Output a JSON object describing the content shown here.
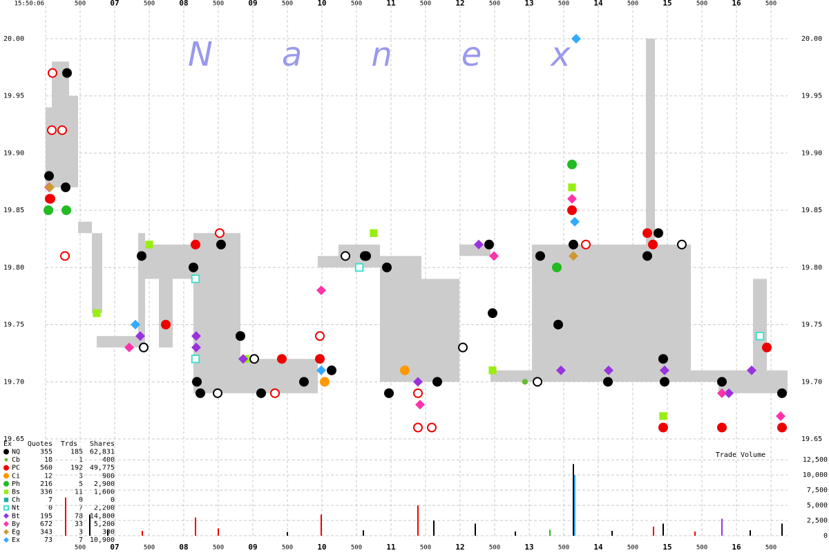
{
  "chart_data": [
    {
      "type": "scatter",
      "watermark": "Nanex",
      "xlim": [
        6,
        16.74
      ],
      "xticks": [
        {
          "value": 6,
          "label": "15:50:06"
        },
        {
          "value": 6.5,
          "label": "500"
        },
        {
          "value": 7,
          "label": "07"
        },
        {
          "value": 7.5,
          "label": "500"
        },
        {
          "value": 8,
          "label": "08"
        },
        {
          "value": 8.5,
          "label": "500"
        },
        {
          "value": 9,
          "label": "09"
        },
        {
          "value": 9.5,
          "label": "500"
        },
        10,
        {
          "value": 10.5,
          "label": "500"
        },
        11,
        {
          "value": 11.5,
          "label": "500"
        },
        12,
        {
          "value": 12.5,
          "label": "500"
        },
        13,
        {
          "value": 13.5,
          "label": "500"
        },
        14,
        {
          "value": 14.5,
          "label": "500"
        },
        15,
        {
          "value": 15.5,
          "label": "500"
        },
        16,
        {
          "value": 16.5,
          "label": "500"
        }
      ],
      "ylim": [
        19.647,
        20.029
      ],
      "yticks": [
        19.65,
        {
          "value": 19.7,
          "label": "19.70"
        },
        19.75,
        {
          "value": 19.8,
          "label": "19.80"
        },
        19.85,
        {
          "value": 19.9,
          "label": "19.90"
        },
        19.95,
        {
          "value": 20,
          "label": "20.00"
        }
      ],
      "grid": true,
      "band": {
        "color": "#cccccc",
        "t0": [
          6.0,
          6.09,
          6.34,
          6.47,
          6.67,
          6.74,
          7.34,
          7.44,
          7.64,
          7.84,
          8.14,
          8.82,
          9.94,
          10.24,
          10.84,
          11.44,
          11.99,
          12.44,
          13.04,
          13.49,
          14.69,
          14.82,
          15.34,
          15.74,
          16.24,
          16.44
        ],
        "t1": [
          6.09,
          6.34,
          6.47,
          6.67,
          6.82,
          7.34,
          7.44,
          7.64,
          7.84,
          8.14,
          8.82,
          9.94,
          10.24,
          10.84,
          11.44,
          11.99,
          12.44,
          13.04,
          13.49,
          14.69,
          14.82,
          15.34,
          15.74,
          16.24,
          16.44,
          16.74
        ],
        "bid": [
          19.87,
          19.87,
          19.87,
          19.83,
          19.76,
          19.73,
          19.73,
          19.79,
          19.73,
          19.79,
          19.69,
          19.69,
          19.8,
          19.8,
          19.7,
          19.7,
          19.81,
          19.7,
          19.7,
          19.7,
          19.7,
          19.7,
          19.7,
          19.69,
          19.69,
          19.69
        ],
        "ask": [
          19.94,
          19.98,
          19.95,
          19.84,
          19.83,
          19.74,
          19.83,
          19.82,
          19.82,
          19.82,
          19.83,
          19.72,
          19.81,
          19.82,
          19.81,
          19.79,
          19.82,
          19.71,
          19.82,
          19.82,
          20.0,
          19.82,
          19.71,
          19.71,
          19.79,
          19.71
        ]
      },
      "quotes": {
        "x": [
          6.09,
          6.24,
          6.1,
          6.28,
          8.52,
          9.97,
          11.39,
          11.39,
          11.59,
          9.32,
          13.82,
          6.07,
          7.42,
          8.49,
          9.02,
          10.62,
          13.12,
          15.21,
          12.04,
          10.34
        ],
        "values": [
          19.92,
          19.92,
          19.97,
          19.81,
          19.83,
          19.74,
          19.69,
          19.66,
          19.66,
          19.69,
          19.82,
          19.86,
          19.73,
          19.69,
          19.72,
          19.81,
          19.7,
          19.82,
          19.73,
          19.81
        ],
        "colors": [
          "#ee0000",
          "#ee0000",
          "#ee0000",
          "#ee0000",
          "#ee0000",
          "#ee0000",
          "#ee0000",
          "#ee0000",
          "#ee0000",
          "#ee0000",
          "#ee0000",
          "#ee0000",
          "#000000",
          "#000000",
          "#000000",
          "#000000",
          "#000000",
          "#000000",
          "#000000",
          "#000000"
        ]
      },
      "legend_columns": [
        "Ex",
        "Quotes",
        "Trds",
        "Shares"
      ],
      "series": [
        {
          "name": "NQ",
          "color": "#000000",
          "marker": "circle",
          "quotes": 355,
          "trades": 185,
          "shares": "62,831",
          "x": [
            6.05,
            6.31,
            6.29,
            7.39,
            8.14,
            8.19,
            8.24,
            8.54,
            8.82,
            9.12,
            9.74,
            10.14,
            10.64,
            10.94,
            10.97,
            11.67,
            12.42,
            12.47,
            13.16,
            13.42,
            13.64,
            14.14,
            14.71,
            14.87,
            14.94,
            14.96,
            15.79,
            16.66
          ],
          "values": [
            19.88,
            19.97,
            19.87,
            19.81,
            19.8,
            19.7,
            19.69,
            19.82,
            19.74,
            19.69,
            19.7,
            19.71,
            19.81,
            19.8,
            19.69,
            19.7,
            19.82,
            19.76,
            19.81,
            19.75,
            19.82,
            19.7,
            19.81,
            19.83,
            19.72,
            19.7,
            19.7,
            19.69
          ]
        },
        {
          "name": "Cb",
          "color": "#66bb33",
          "marker": "small",
          "quotes": 18,
          "trades": 1,
          "shares": "400",
          "x": [
            12.94
          ],
          "values": [
            19.7
          ]
        },
        {
          "name": "PC",
          "color": "#ee0000",
          "marker": "circle",
          "quotes": 560,
          "trades": 192,
          "shares": "49,775",
          "x": [
            6.06,
            8.17,
            7.74,
            9.42,
            9.97,
            13.62,
            14.71,
            14.79,
            14.94,
            15.79,
            16.44,
            16.66
          ],
          "values": [
            19.86,
            19.82,
            19.75,
            19.72,
            19.72,
            19.85,
            19.83,
            19.82,
            19.66,
            19.66,
            19.73,
            19.66
          ]
        },
        {
          "name": "Ci",
          "color": "#ff9900",
          "marker": "circle",
          "quotes": 12,
          "trades": 3,
          "shares": "900",
          "x": [
            11.2,
            10.04
          ],
          "values": [
            19.71,
            19.7
          ]
        },
        {
          "name": "Ph",
          "color": "#22bb22",
          "marker": "circle",
          "quotes": 216,
          "trades": 5,
          "shares": "2,900",
          "x": [
            6.3,
            6.04,
            13.62,
            13.4
          ],
          "values": [
            19.85,
            19.85,
            19.89,
            19.8
          ]
        },
        {
          "name": "Bs",
          "color": "#99ee11",
          "marker": "square",
          "quotes": 336,
          "trades": 11,
          "shares": "1,600",
          "x": [
            6.74,
            7.5,
            8.89,
            10.75,
            12.47,
            13.62,
            14.94
          ],
          "values": [
            19.76,
            19.82,
            19.72,
            19.83,
            19.71,
            19.87,
            19.67
          ]
        },
        {
          "name": "Ch",
          "color": "#22aaaa",
          "marker": "square",
          "quotes": 7,
          "trades": 0,
          "shares": "0",
          "x": [],
          "values": []
        },
        {
          "name": "Nt",
          "color": "#44ddcc",
          "marker": "hollow-square",
          "quotes": 0,
          "trades": 7,
          "shares": "2,200",
          "x": [
            8.17,
            8.17,
            10.54,
            16.34
          ],
          "values": [
            19.79,
            19.72,
            19.8,
            19.74
          ]
        },
        {
          "name": "Bt",
          "color": "#9933dd",
          "marker": "diamond",
          "quotes": 195,
          "trades": 78,
          "shares": "14,800",
          "x": [
            7.37,
            8.18,
            8.18,
            8.86,
            11.39,
            12.27,
            13.46,
            14.15,
            14.96,
            15.89,
            16.22
          ],
          "values": [
            19.74,
            19.74,
            19.73,
            19.72,
            19.7,
            19.82,
            19.71,
            19.71,
            19.71,
            19.69,
            19.71
          ]
        },
        {
          "name": "By",
          "color": "#ff33aa",
          "marker": "diamond",
          "quotes": 672,
          "trades": 33,
          "shares": "5,200",
          "x": [
            6.05,
            7.21,
            9.99,
            11.42,
            13.62,
            12.49,
            15.79,
            16.64
          ],
          "values": [
            19.87,
            19.73,
            19.78,
            19.68,
            19.86,
            19.81,
            19.69,
            19.67
          ]
        },
        {
          "name": "Eg",
          "color": "#cc9933",
          "marker": "diamond",
          "quotes": 343,
          "trades": 3,
          "shares": "300",
          "x": [
            6.06,
            13.64
          ],
          "values": [
            19.87,
            19.81
          ]
        },
        {
          "name": "Ex",
          "color": "#33aaff",
          "marker": "diamond",
          "quotes": 73,
          "trades": 7,
          "shares": "10,900",
          "x": [
            13.68,
            7.3,
            9.99,
            13.66
          ],
          "values": [
            20.0,
            19.75,
            19.71,
            19.84
          ]
        }
      ]
    },
    {
      "type": "bar",
      "title": "Trade Volume",
      "xlim": [
        6,
        16.74
      ],
      "xticks": [
        {
          "value": 6.5,
          "label": "500"
        },
        {
          "value": 7,
          "label": "07"
        },
        {
          "value": 7.5,
          "label": "500"
        },
        {
          "value": 8,
          "label": "08"
        },
        {
          "value": 8.5,
          "label": "500"
        },
        {
          "value": 9,
          "label": "09"
        },
        {
          "value": 9.5,
          "label": "500"
        },
        10,
        {
          "value": 10.5,
          "label": "500"
        },
        11,
        {
          "value": 11.5,
          "label": "500"
        },
        12,
        {
          "value": 12.5,
          "label": "500"
        },
        13,
        {
          "value": 13.5,
          "label": "500"
        },
        14,
        {
          "value": 14.5,
          "label": "500"
        },
        15,
        {
          "value": 15.5,
          "label": "500"
        },
        16,
        {
          "value": 16.5,
          "label": "500"
        }
      ],
      "ylim": [
        0,
        14800
      ],
      "yticks": [
        0,
        {
          "value": 2500,
          "label": "2,500"
        },
        {
          "value": 5000,
          "label": "5,000"
        },
        {
          "value": 7500,
          "label": "7,500"
        },
        {
          "value": 10000,
          "label": "10,000"
        },
        {
          "value": 12500,
          "label": "12,500"
        }
      ],
      "x": [
        6.29,
        6.64,
        8.17,
        9.99,
        11.39,
        12.22,
        11.62,
        13.64,
        13.66,
        15.79,
        16.66,
        6.9,
        7.4,
        8.5,
        9.5,
        10.6,
        12.8,
        13.3,
        14.2,
        14.8,
        14.94,
        15.4,
        16.2
      ],
      "values": [
        6300,
        3500,
        3000,
        3500,
        5000,
        2000,
        2500,
        11800,
        10000,
        2800,
        2000,
        1000,
        800,
        1200,
        600,
        900,
        700,
        1000,
        800,
        1500,
        2000,
        700,
        900
      ],
      "colors": [
        "#ee0000",
        "#000000",
        "#ee0000",
        "#ee0000",
        "#ee0000",
        "#000000",
        "#000000",
        "#000000",
        "#33aaff",
        "#9933dd",
        "#000000",
        "#000000",
        "#ee0000",
        "#ee0000",
        "#000000",
        "#000000",
        "#000000",
        "#22bb22",
        "#000000",
        "#ee0000",
        "#000000",
        "#ee0000",
        "#000000"
      ]
    }
  ]
}
